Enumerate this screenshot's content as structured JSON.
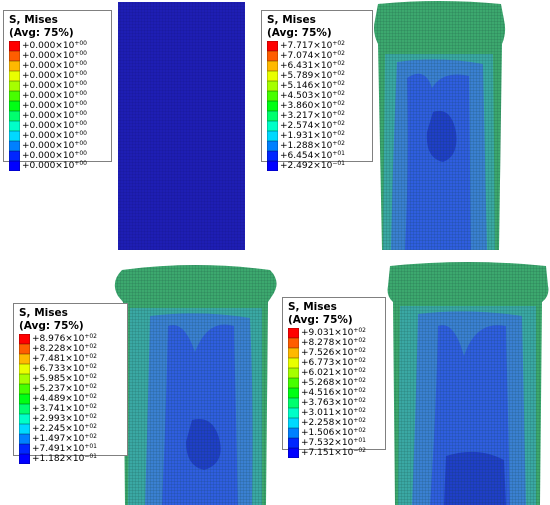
{
  "legends": [
    {
      "title1": "S, Mises",
      "title2": "(Avg: 75%)",
      "values": [
        "+0.000",
        "+0.000",
        "+0.000",
        "+0.000",
        "+0.000",
        "+0.000",
        "+0.000",
        "+0.000",
        "+0.000",
        "+0.000",
        "+0.000",
        "+0.000",
        "+0.000"
      ],
      "exps": [
        "+00",
        "+00",
        "+00",
        "+00",
        "+00",
        "+00",
        "+00",
        "+00",
        "+00",
        "+00",
        "+00",
        "+00",
        "+00"
      ]
    },
    {
      "title1": "S, Mises",
      "title2": "(Avg: 75%)",
      "values": [
        "+7.717",
        "+7.074",
        "+6.431",
        "+5.789",
        "+5.146",
        "+4.503",
        "+3.860",
        "+3.217",
        "+2.574",
        "+1.931",
        "+1.288",
        "+6.454",
        "+2.492"
      ],
      "exps": [
        "+02",
        "+02",
        "+02",
        "+02",
        "+02",
        "+02",
        "+02",
        "+02",
        "+02",
        "+02",
        "+02",
        "+01",
        "−01"
      ]
    },
    {
      "title1": "S, Mises",
      "title2": "(Avg: 75%)",
      "values": [
        "+8.976",
        "+8.228",
        "+7.481",
        "+6.733",
        "+5.985",
        "+5.237",
        "+4.489",
        "+3.741",
        "+2.993",
        "+2.245",
        "+1.497",
        "+7.491",
        "+1.182"
      ],
      "exps": [
        "+02",
        "+02",
        "+02",
        "+02",
        "+02",
        "+02",
        "+02",
        "+02",
        "+02",
        "+02",
        "+02",
        "+01",
        "−01"
      ]
    },
    {
      "title1": "S, Mises",
      "title2": "(Avg: 75%)",
      "values": [
        "+9.031",
        "+8.278",
        "+7.526",
        "+6.773",
        "+6.021",
        "+5.268",
        "+4.516",
        "+3.763",
        "+3.011",
        "+2.258",
        "+1.506",
        "+7.532",
        "+7.151"
      ],
      "exps": [
        "+02",
        "+02",
        "+02",
        "+02",
        "+02",
        "+02",
        "+02",
        "+02",
        "+02",
        "+02",
        "+02",
        "+01",
        "−02"
      ]
    }
  ],
  "multiplier": "×10",
  "scale_colors": [
    "#ff0000",
    "#ff5d00",
    "#ffb900",
    "#e9ff00",
    "#a6ff00",
    "#47ff00",
    "#00ff14",
    "#00ff6e",
    "#00ffc8",
    "#00d9ff",
    "#0080ff",
    "#0026ff",
    "#0000ff"
  ],
  "mesh_colors": {
    "deep_blue": "#1e1eb4",
    "green": "#3ca86e",
    "teal": "#3aa8a4",
    "light_blue": "#3a80d2",
    "mid_blue": "#2f5ee0",
    "dark_blue": "#1f3fc8"
  }
}
